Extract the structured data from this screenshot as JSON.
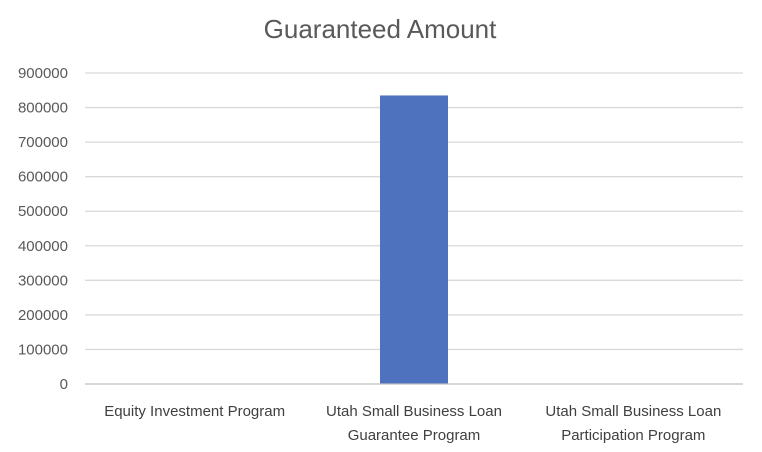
{
  "chart_data": {
    "type": "bar",
    "title": "Guaranteed Amount",
    "xlabel": "",
    "ylabel": "",
    "categories": [
      [
        "Equity Investment Program"
      ],
      [
        "Utah Small Business Loan",
        "Guarantee Program"
      ],
      [
        "Utah Small Business Loan",
        "Participation Program"
      ]
    ],
    "values": [
      0,
      835000,
      0
    ],
    "ylim": [
      0,
      900000
    ],
    "yticks": [
      "0",
      "100000",
      "200000",
      "300000",
      "400000",
      "500000",
      "600000",
      "700000",
      "800000",
      "900000"
    ],
    "grid": true,
    "legend": "none",
    "colors": {
      "bar": "#4f72be",
      "grid": "#d9d9d9",
      "axis": "#bfbfbf",
      "text": "#595959"
    }
  }
}
